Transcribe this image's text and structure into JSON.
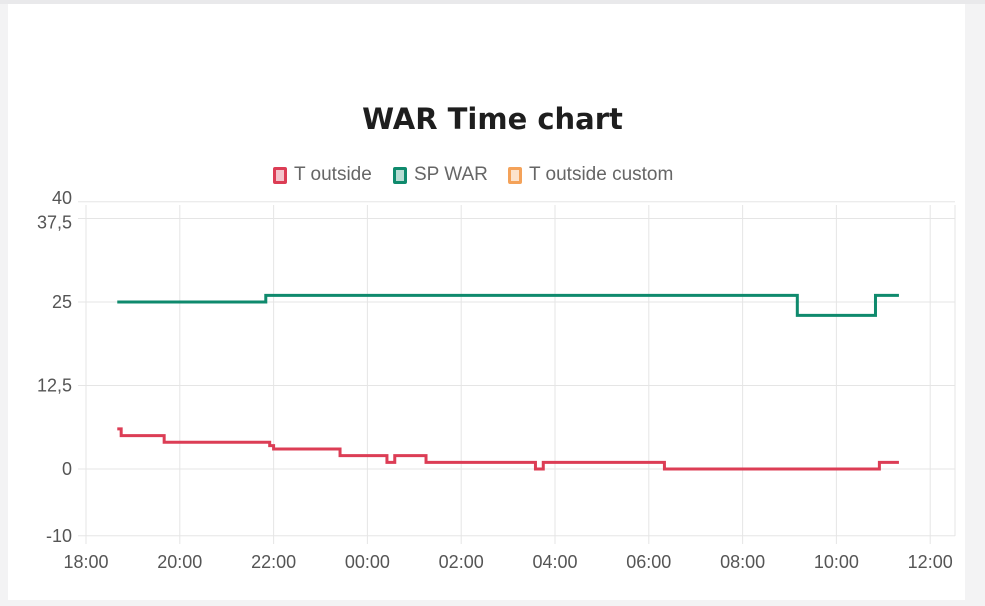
{
  "colors": {
    "t_outside": "#dc3d55",
    "sp_war": "#0f8a6d",
    "t_outside_custom": "#f4a259",
    "grid": "#e5e5e5"
  },
  "chart_data": {
    "type": "line",
    "title": "WAR Time chart",
    "xlabel": "",
    "ylabel": "",
    "legend_position": "top",
    "grid": true,
    "x_unit": "hours",
    "xlim": [
      18.0,
      12.5
    ],
    "x_ticks": [
      "18:00",
      "20:00",
      "22:00",
      "00:00",
      "02:00",
      "04:00",
      "06:00",
      "08:00",
      "10:00",
      "12:00"
    ],
    "ylim": [
      -10,
      40
    ],
    "y_ticks": [
      "-10",
      "0",
      "12,5",
      "25",
      "37,5",
      "40"
    ],
    "y_tick_values": [
      -10,
      0,
      12.5,
      25,
      37.5,
      40
    ],
    "series": [
      {
        "name": "T outside",
        "color_key": "t_outside",
        "step": true,
        "points": [
          [
            "18:40",
            6
          ],
          [
            "18:45",
            5
          ],
          [
            "19:40",
            4
          ],
          [
            "21:55",
            3.5
          ],
          [
            "22:00",
            3
          ],
          [
            "23:25",
            2
          ],
          [
            "00:25",
            1
          ],
          [
            "00:35",
            2
          ],
          [
            "01:15",
            1
          ],
          [
            "03:35",
            0
          ],
          [
            "03:45",
            1
          ],
          [
            "06:20",
            0
          ],
          [
            "10:55",
            1
          ],
          [
            "11:20",
            1
          ]
        ]
      },
      {
        "name": "SP WAR",
        "color_key": "sp_war",
        "step": true,
        "points": [
          [
            "18:40",
            25
          ],
          [
            "21:50",
            26
          ],
          [
            "09:10",
            23
          ],
          [
            "10:50",
            26
          ],
          [
            "11:20",
            26
          ]
        ]
      },
      {
        "name": "T outside custom",
        "color_key": "t_outside_custom",
        "step": true,
        "points": []
      }
    ]
  }
}
